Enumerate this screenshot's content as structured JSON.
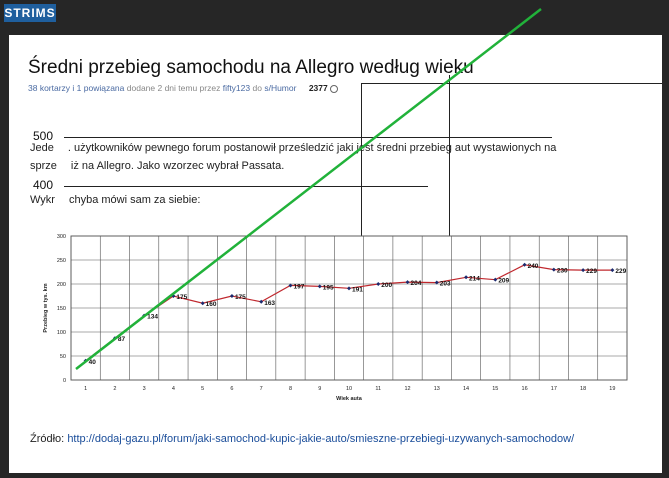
{
  "brand": {
    "logo_text": "STRIMS",
    "logo_color": "#1f5f9e"
  },
  "article": {
    "title": "Średni przebieg samochodu na Allegro według wieku",
    "meta_comments": "38 kor",
    "meta_mid": "tarzy i 1 powiązana",
    "meta_added": "dodane 2 dni temu przez",
    "meta_author": "fifty123",
    "meta_do": "do",
    "meta_category": "s/Humor",
    "meta_views": "2377",
    "side_label_top": "500",
    "side_label_mid": "400",
    "para1_a": "Jede",
    "para1_b": ". użytkowników pewnego forum postanowił prześledzić jaki jest średni przebieg aut wystawionych na",
    "para2_a": "sprze",
    "para2_b": "iż na Allegro. Jako wzorzec wybrał Passata.",
    "para3_a": "Wykr",
    "para3_b": "chyba mówi sam za siebie:",
    "source_label": "Źródło:",
    "source_url": "http://dodaj-gazu.pl/forum/jaki-samochod-kupic-jakie-auto/smieszne-przebiegi-uzywanych-samochodow/"
  },
  "chart_data": {
    "type": "line",
    "x": [
      1,
      2,
      3,
      4,
      5,
      6,
      7,
      8,
      9,
      10,
      11,
      12,
      13,
      14,
      15,
      16,
      17,
      18,
      19
    ],
    "values": [
      40,
      87,
      134,
      175,
      160,
      175,
      163,
      197,
      195,
      191,
      200,
      204,
      203,
      214,
      209,
      240,
      230,
      229,
      229
    ],
    "data_labels": [
      "40",
      "87",
      "134",
      "175",
      "160",
      "175",
      "163",
      "197",
      "195",
      "191",
      "200",
      "204",
      "203",
      "214",
      "209",
      "240",
      "230",
      "229",
      "229"
    ],
    "label_mask": [
      1,
      1,
      1,
      1,
      1,
      1,
      1,
      1,
      1,
      1,
      1,
      1,
      1,
      1,
      1,
      1,
      1,
      1,
      1
    ],
    "xlabel": "Wiek auta",
    "ylabel": "Przebieg w tys. km",
    "ylim": [
      0,
      300
    ],
    "yticks": [
      "0",
      "50",
      "100",
      "150",
      "200",
      "250",
      "300"
    ],
    "xticks": [
      "1",
      "2",
      "3",
      "4",
      "5",
      "6",
      "7",
      "8",
      "9",
      "10",
      "11",
      "12",
      "13",
      "14",
      "15",
      "16",
      "17",
      "18",
      "19"
    ],
    "grid": true,
    "series_color": "#c0282e",
    "marker_color": "#1c2a6e",
    "trend_color": "#21b23a"
  }
}
